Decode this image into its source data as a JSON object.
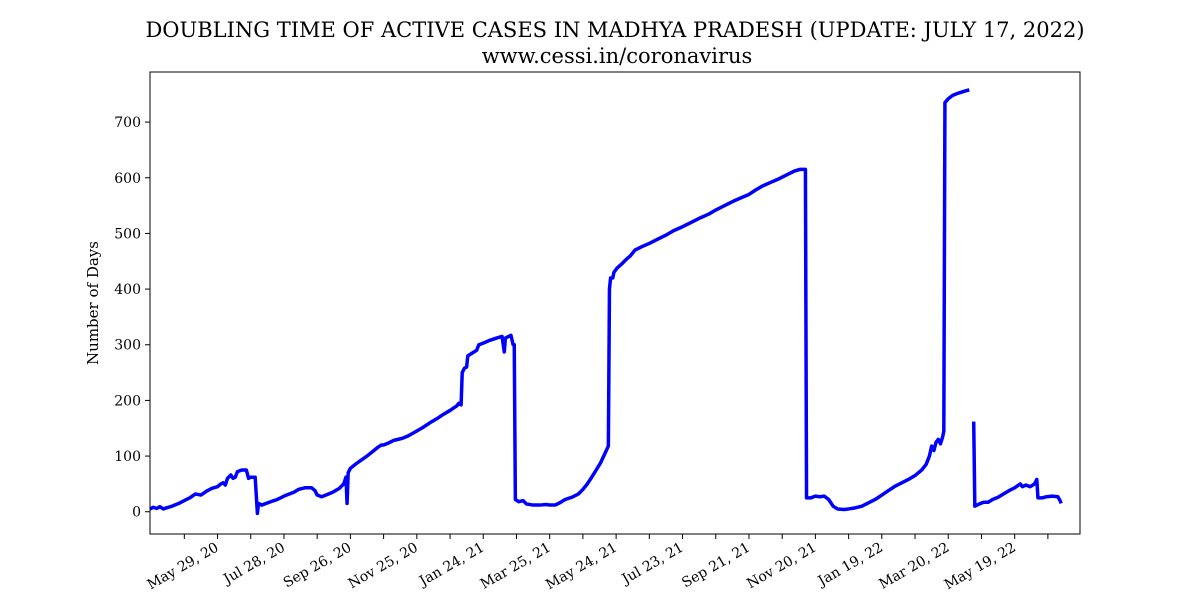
{
  "chart_data": {
    "type": "line",
    "title": "DOUBLING TIME OF ACTIVE CASES IN MADHYA PRADESH (UPDATE: JULY 17, 2022)",
    "subtitle": "www.cessi.in/coronavirus",
    "xlabel": "",
    "ylabel": "Number of Days",
    "xlim": [
      "2020-03-29",
      "2022-07-17"
    ],
    "ylim": [
      -40,
      790
    ],
    "grid": false,
    "line_color": "#0000ff",
    "x_ticks": [
      {
        "date": "2020-04-29",
        "label": ""
      },
      {
        "date": "2020-05-29",
        "label": "May 29, 20"
      },
      {
        "date": "2020-06-28",
        "label": ""
      },
      {
        "date": "2020-07-28",
        "label": "Jul 28, 20"
      },
      {
        "date": "2020-08-27",
        "label": ""
      },
      {
        "date": "2020-09-26",
        "label": "Sep 26, 20"
      },
      {
        "date": "2020-10-26",
        "label": ""
      },
      {
        "date": "2020-11-25",
        "label": "Nov 25, 20"
      },
      {
        "date": "2020-12-25",
        "label": ""
      },
      {
        "date": "2021-01-24",
        "label": "Jan 24, 21"
      },
      {
        "date": "2021-02-23",
        "label": ""
      },
      {
        "date": "2021-03-25",
        "label": "Mar 25, 21"
      },
      {
        "date": "2021-04-24",
        "label": ""
      },
      {
        "date": "2021-05-24",
        "label": "May 24, 21"
      },
      {
        "date": "2021-06-23",
        "label": ""
      },
      {
        "date": "2021-07-23",
        "label": "Jul 23, 21"
      },
      {
        "date": "2021-08-22",
        "label": ""
      },
      {
        "date": "2021-09-21",
        "label": "Sep 21, 21"
      },
      {
        "date": "2021-10-21",
        "label": ""
      },
      {
        "date": "2021-11-20",
        "label": "Nov 20, 21"
      },
      {
        "date": "2021-12-20",
        "label": ""
      },
      {
        "date": "2022-01-19",
        "label": "Jan 19, 22"
      },
      {
        "date": "2022-02-18",
        "label": ""
      },
      {
        "date": "2022-03-20",
        "label": "Mar 20, 22"
      },
      {
        "date": "2022-04-19",
        "label": ""
      },
      {
        "date": "2022-05-19",
        "label": "May 19, 22"
      },
      {
        "date": "2022-06-18",
        "label": ""
      }
    ],
    "y_ticks": [
      0,
      100,
      200,
      300,
      400,
      500,
      600,
      700
    ],
    "series": [
      {
        "name": "",
        "points": [
          [
            "2020-03-29",
            5
          ],
          [
            "2020-04-01",
            8
          ],
          [
            "2020-04-04",
            6
          ],
          [
            "2020-04-07",
            9
          ],
          [
            "2020-04-10",
            5
          ],
          [
            "2020-04-13",
            7
          ],
          [
            "2020-04-18",
            10
          ],
          [
            "2020-04-24",
            15
          ],
          [
            "2020-04-29",
            20
          ],
          [
            "2020-05-04",
            25
          ],
          [
            "2020-05-09",
            32
          ],
          [
            "2020-05-14",
            30
          ],
          [
            "2020-05-19",
            37
          ],
          [
            "2020-05-24",
            42
          ],
          [
            "2020-05-29",
            45
          ],
          [
            "2020-06-01",
            50
          ],
          [
            "2020-06-03",
            52
          ],
          [
            "2020-06-05",
            48
          ],
          [
            "2020-06-07",
            60
          ],
          [
            "2020-06-10",
            66
          ],
          [
            "2020-06-12",
            60
          ],
          [
            "2020-06-14",
            62
          ],
          [
            "2020-06-16",
            72
          ],
          [
            "2020-06-20",
            75
          ],
          [
            "2020-06-24",
            75
          ],
          [
            "2020-06-26",
            60
          ],
          [
            "2020-06-28",
            62
          ],
          [
            "2020-07-02",
            62
          ],
          [
            "2020-07-04",
            -3
          ],
          [
            "2020-07-05",
            15
          ],
          [
            "2020-07-08",
            12
          ],
          [
            "2020-07-12",
            15
          ],
          [
            "2020-07-16",
            18
          ],
          [
            "2020-07-22",
            22
          ],
          [
            "2020-07-28",
            28
          ],
          [
            "2020-08-02",
            32
          ],
          [
            "2020-08-06",
            35
          ],
          [
            "2020-08-10",
            40
          ],
          [
            "2020-08-16",
            43
          ],
          [
            "2020-08-22",
            43
          ],
          [
            "2020-08-25",
            38
          ],
          [
            "2020-08-27",
            30
          ],
          [
            "2020-08-31",
            27
          ],
          [
            "2020-09-04",
            30
          ],
          [
            "2020-09-10",
            35
          ],
          [
            "2020-09-16",
            42
          ],
          [
            "2020-09-20",
            50
          ],
          [
            "2020-09-22",
            62
          ],
          [
            "2020-09-23",
            15
          ],
          [
            "2020-09-24",
            70
          ],
          [
            "2020-09-26",
            78
          ],
          [
            "2020-10-01",
            86
          ],
          [
            "2020-10-06",
            93
          ],
          [
            "2020-10-11",
            100
          ],
          [
            "2020-10-16",
            108
          ],
          [
            "2020-10-21",
            116
          ],
          [
            "2020-10-24",
            120
          ],
          [
            "2020-10-26",
            120
          ],
          [
            "2020-10-31",
            124
          ],
          [
            "2020-11-04",
            128
          ],
          [
            "2020-11-08",
            130
          ],
          [
            "2020-11-12",
            132
          ],
          [
            "2020-11-17",
            136
          ],
          [
            "2020-11-25",
            145
          ],
          [
            "2020-12-01",
            152
          ],
          [
            "2020-12-07",
            160
          ],
          [
            "2020-12-13",
            167
          ],
          [
            "2020-12-19",
            175
          ],
          [
            "2020-12-25",
            182
          ],
          [
            "2020-12-31",
            190
          ],
          [
            "2021-01-02",
            195
          ],
          [
            "2021-01-04",
            192
          ],
          [
            "2021-01-05",
            250
          ],
          [
            "2021-01-07",
            258
          ],
          [
            "2021-01-09",
            260
          ],
          [
            "2021-01-10",
            280
          ],
          [
            "2021-01-14",
            285
          ],
          [
            "2021-01-18",
            290
          ],
          [
            "2021-01-20",
            300
          ],
          [
            "2021-01-24",
            303
          ],
          [
            "2021-01-30",
            308
          ],
          [
            "2021-02-05",
            312
          ],
          [
            "2021-02-10",
            315
          ],
          [
            "2021-02-12",
            287
          ],
          [
            "2021-02-13",
            312
          ],
          [
            "2021-02-18",
            317
          ],
          [
            "2021-02-20",
            300
          ],
          [
            "2021-02-21",
            300
          ],
          [
            "2021-02-22",
            22
          ],
          [
            "2021-02-25",
            18
          ],
          [
            "2021-03-01",
            20
          ],
          [
            "2021-03-04",
            14
          ],
          [
            "2021-03-10",
            12
          ],
          [
            "2021-03-16",
            12
          ],
          [
            "2021-03-22",
            13
          ],
          [
            "2021-03-25",
            12
          ],
          [
            "2021-03-30",
            12
          ],
          [
            "2021-04-03",
            16
          ],
          [
            "2021-04-08",
            22
          ],
          [
            "2021-04-14",
            26
          ],
          [
            "2021-04-20",
            32
          ],
          [
            "2021-04-24",
            40
          ],
          [
            "2021-04-28",
            50
          ],
          [
            "2021-05-02",
            62
          ],
          [
            "2021-05-06",
            75
          ],
          [
            "2021-05-10",
            88
          ],
          [
            "2021-05-14",
            105
          ],
          [
            "2021-05-17",
            118
          ],
          [
            "2021-05-18",
            400
          ],
          [
            "2021-05-19",
            420
          ],
          [
            "2021-05-21",
            420
          ],
          [
            "2021-05-22",
            430
          ],
          [
            "2021-05-25",
            438
          ],
          [
            "2021-05-29",
            445
          ],
          [
            "2021-06-02",
            453
          ],
          [
            "2021-06-06",
            460
          ],
          [
            "2021-06-10",
            470
          ],
          [
            "2021-06-16",
            476
          ],
          [
            "2021-06-23",
            482
          ],
          [
            "2021-07-01",
            490
          ],
          [
            "2021-07-09",
            498
          ],
          [
            "2021-07-15",
            505
          ],
          [
            "2021-07-23",
            512
          ],
          [
            "2021-07-31",
            520
          ],
          [
            "2021-08-08",
            528
          ],
          [
            "2021-08-16",
            535
          ],
          [
            "2021-08-22",
            542
          ],
          [
            "2021-08-30",
            550
          ],
          [
            "2021-09-07",
            558
          ],
          [
            "2021-09-15",
            565
          ],
          [
            "2021-09-21",
            570
          ],
          [
            "2021-09-27",
            578
          ],
          [
            "2021-10-03",
            585
          ],
          [
            "2021-10-11",
            592
          ],
          [
            "2021-10-18",
            598
          ],
          [
            "2021-10-25",
            605
          ],
          [
            "2021-11-01",
            612
          ],
          [
            "2021-11-06",
            615
          ],
          [
            "2021-11-08",
            615
          ],
          [
            "2021-11-11",
            615
          ],
          [
            "2021-11-12",
            25
          ],
          [
            "2021-11-16",
            25
          ],
          [
            "2021-11-20",
            28
          ],
          [
            "2021-11-24",
            27
          ],
          [
            "2021-11-28",
            28
          ],
          [
            "2021-12-02",
            22
          ],
          [
            "2021-12-06",
            10
          ],
          [
            "2021-12-10",
            5
          ],
          [
            "2021-12-16",
            4
          ],
          [
            "2021-12-20",
            5
          ],
          [
            "2021-12-26",
            7
          ],
          [
            "2022-01-01",
            10
          ],
          [
            "2022-01-07",
            16
          ],
          [
            "2022-01-13",
            22
          ],
          [
            "2022-01-19",
            30
          ],
          [
            "2022-01-25",
            38
          ],
          [
            "2022-01-31",
            46
          ],
          [
            "2022-02-06",
            52
          ],
          [
            "2022-02-12",
            58
          ],
          [
            "2022-02-18",
            65
          ],
          [
            "2022-02-24",
            75
          ],
          [
            "2022-02-28",
            85
          ],
          [
            "2022-03-03",
            100
          ],
          [
            "2022-03-05",
            118
          ],
          [
            "2022-03-07",
            110
          ],
          [
            "2022-03-09",
            125
          ],
          [
            "2022-03-11",
            130
          ],
          [
            "2022-03-13",
            122
          ],
          [
            "2022-03-15",
            135
          ],
          [
            "2022-03-16",
            145
          ],
          [
            "2022-03-17",
            735
          ],
          [
            "2022-03-20",
            742
          ],
          [
            "2022-03-24",
            748
          ],
          [
            "2022-03-29",
            752
          ],
          [
            "2022-04-03",
            755
          ],
          [
            "2022-04-08",
            758
          ]
        ]
      },
      {
        "name": "",
        "points": [
          [
            "2022-04-12",
            162
          ],
          [
            "2022-04-13",
            10
          ],
          [
            "2022-04-17",
            14
          ],
          [
            "2022-04-21",
            17
          ],
          [
            "2022-04-25",
            17
          ],
          [
            "2022-04-29",
            22
          ],
          [
            "2022-05-04",
            26
          ],
          [
            "2022-05-09",
            32
          ],
          [
            "2022-05-14",
            38
          ],
          [
            "2022-05-19",
            43
          ],
          [
            "2022-05-24",
            50
          ],
          [
            "2022-05-26",
            45
          ],
          [
            "2022-05-29",
            48
          ],
          [
            "2022-06-02",
            45
          ],
          [
            "2022-06-06",
            50
          ],
          [
            "2022-06-08",
            58
          ],
          [
            "2022-06-09",
            25
          ],
          [
            "2022-06-13",
            25
          ],
          [
            "2022-06-17",
            27
          ],
          [
            "2022-06-22",
            28
          ],
          [
            "2022-06-27",
            27
          ],
          [
            "2022-06-29",
            20
          ],
          [
            "2022-06-30",
            15
          ]
        ]
      }
    ]
  }
}
